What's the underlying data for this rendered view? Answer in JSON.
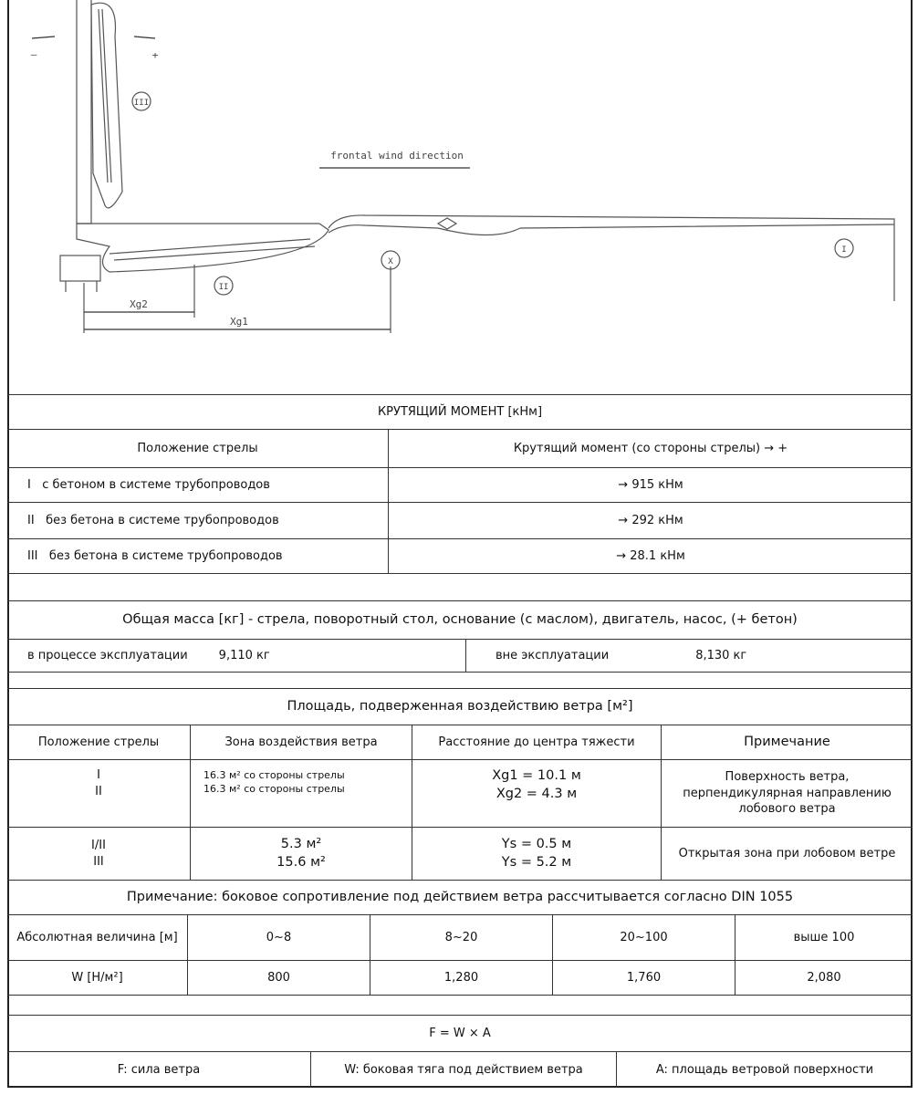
{
  "drawing": {
    "wind_label": "frontal wind direction",
    "minus": "–",
    "plus": "+",
    "pos_i": "I",
    "pos_ii": "II",
    "pos_iii": "III",
    "center_mark": "X",
    "xg1": "Xg1",
    "xg2": "Xg2"
  },
  "torque": {
    "title": "КРУТЯЩИЙ МОМЕНТ [кНм]",
    "headers": [
      "Положение стрелы",
      "Крутящий момент (со стороны стрелы) → +"
    ],
    "rows": [
      {
        "pos": "I",
        "desc": "с бетоном в системе трубопроводов",
        "value": "→ 915 кНм"
      },
      {
        "pos": "II",
        "desc": "без бетона в системе трубопроводов",
        "value": "→ 292 кНм"
      },
      {
        "pos": "III",
        "desc": "без бетона в системе трубопроводов",
        "value": "→ 28.1 кНм"
      }
    ]
  },
  "mass": {
    "title": "Общая масса [кг] - стрела, поворотный стол, основание (с маслом), двигатель, насос, (+ бетон)",
    "operating_label": "в процессе эксплуатации",
    "operating_value": "9,110 кг",
    "idle_label": "вне эксплуатации",
    "idle_value": "8,130 кг"
  },
  "wind": {
    "title": "Площадь, подверженная воздействию ветра [м²]",
    "headers": [
      "Положение стрелы",
      "Зона воздействия ветра",
      "Расстояние до центра тяжести",
      "Примечание"
    ],
    "rows": [
      {
        "pos": [
          "I",
          "II"
        ],
        "zone": [
          "16.3 м² со стороны стрелы",
          "16.3 м² со стороны стрелы"
        ],
        "dist": [
          "Xg1 =  10.1 м",
          "Xg2 = 4.3 м"
        ],
        "note": "Поверхность ветра, перпендикулярная направлению лобового ветра"
      },
      {
        "pos": [
          "I/II",
          "III"
        ],
        "zone": [
          "5.3 м²",
          "15.6 м²"
        ],
        "dist": [
          "Ys  = 0.5 м",
          "Ys  = 5.2 м"
        ],
        "note": "Открытая зона при лобовом ветре"
      }
    ],
    "note": "Примечание: боковое сопротивление под действием ветра рассчитывается согласно DIN 1055"
  },
  "pressure": {
    "height_label": "Абсолютная величина [м]",
    "ranges": [
      "0~8",
      "8~20",
      "20~100",
      "выше 100"
    ],
    "w_label": "W [Н/м²]",
    "values": [
      "800",
      "1,280",
      "1,760",
      "2,080"
    ]
  },
  "formula": {
    "expr": "F = W × A",
    "legend": [
      "F: сила ветра",
      "W: боковая тяга под действием ветра",
      "A: площадь ветровой поверхности"
    ]
  }
}
